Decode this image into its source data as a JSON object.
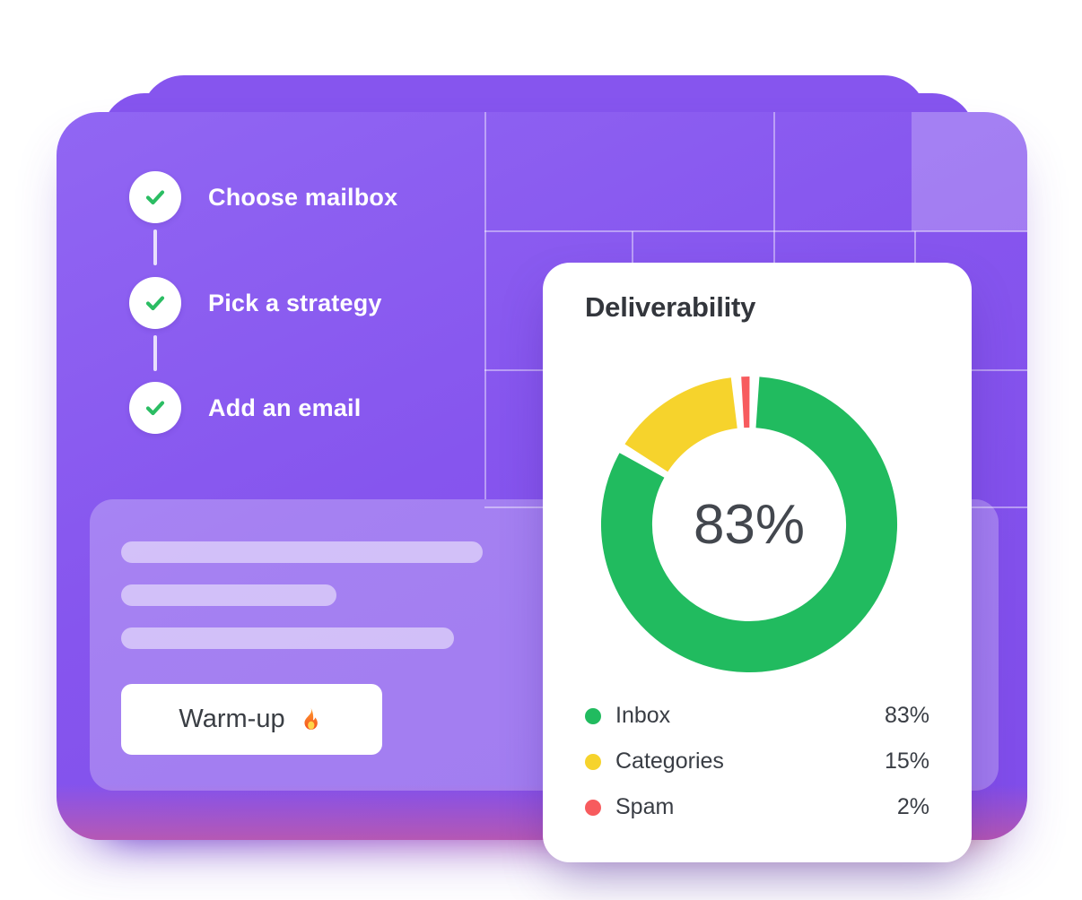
{
  "checklist": {
    "items": [
      {
        "label": "Choose mailbox"
      },
      {
        "label": "Pick a strategy"
      },
      {
        "label": "Add an email"
      }
    ]
  },
  "panel": {
    "button": {
      "label": "Warm-up",
      "icon": "fire-emoji"
    }
  },
  "deliverability_card": {
    "title": "Deliverability",
    "center_value": "83%"
  },
  "legend": [
    {
      "label": "Inbox",
      "value": "83%"
    },
    {
      "label": "Categories",
      "value": "15%"
    },
    {
      "label": "Spam",
      "value": "2%"
    }
  ],
  "chart_data": {
    "type": "pie",
    "variant": "donut",
    "title": "Deliverability",
    "categories": [
      "Inbox",
      "Categories",
      "Spam"
    ],
    "values": [
      83,
      15,
      2
    ],
    "unit": "%",
    "colors": [
      "#21BB5F",
      "#F6D32C",
      "#F75B5E"
    ],
    "center_label": "83%",
    "legend_position": "bottom",
    "segment_gap_degrees": 4,
    "start_angle_degrees": 2
  },
  "colors": {
    "card_purple": "#8655ee",
    "panel_overlay": "rgba(255,255,255,0.26)",
    "check_green": "#2BBD63",
    "glow_warm": "#ef5f74"
  }
}
